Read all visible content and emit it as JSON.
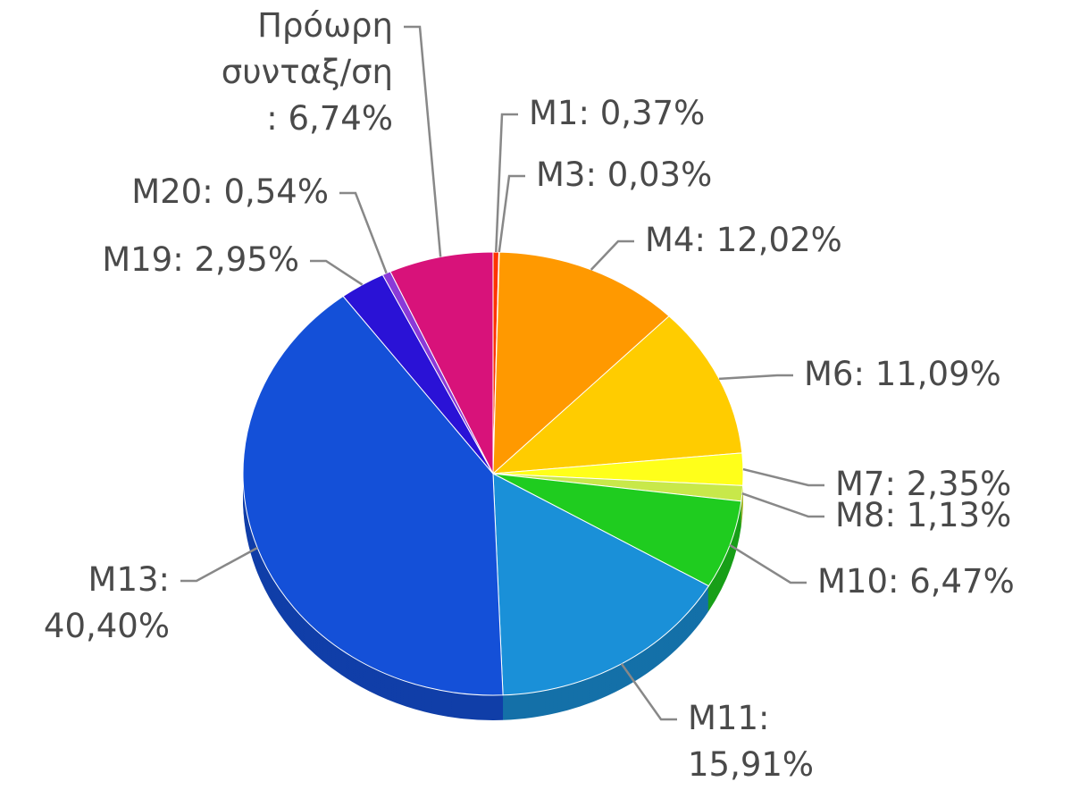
{
  "chart_data": {
    "type": "pie",
    "values": [
      0.37,
      0.03,
      12.02,
      11.09,
      2.35,
      1.13,
      6.47,
      15.91,
      40.4,
      2.95,
      0.54,
      6.74
    ],
    "value_labels": [
      "M1: 0,37%",
      "M3: 0,03%",
      "M4: 12,02%",
      "M6: 11,09%",
      "M7: 2,35%",
      "M8: 1,13%",
      "M10: 6,47%",
      "M11:\n15,91%",
      "M13:\n40,40%",
      "M19: 2,95%",
      "M20: 0,54%",
      "Πρόωρη\nσυνταξ/ση\n: 6,74%"
    ],
    "colors": [
      "#ff3300",
      "#ff6600",
      "#ff9900",
      "#ffcc00",
      "#ffff1a",
      "#c8e84a",
      "#1fcc1f",
      "#1a90d8",
      "#1450d8",
      "#2a12d6",
      "#8a3ad8",
      "#d8127a"
    ]
  }
}
